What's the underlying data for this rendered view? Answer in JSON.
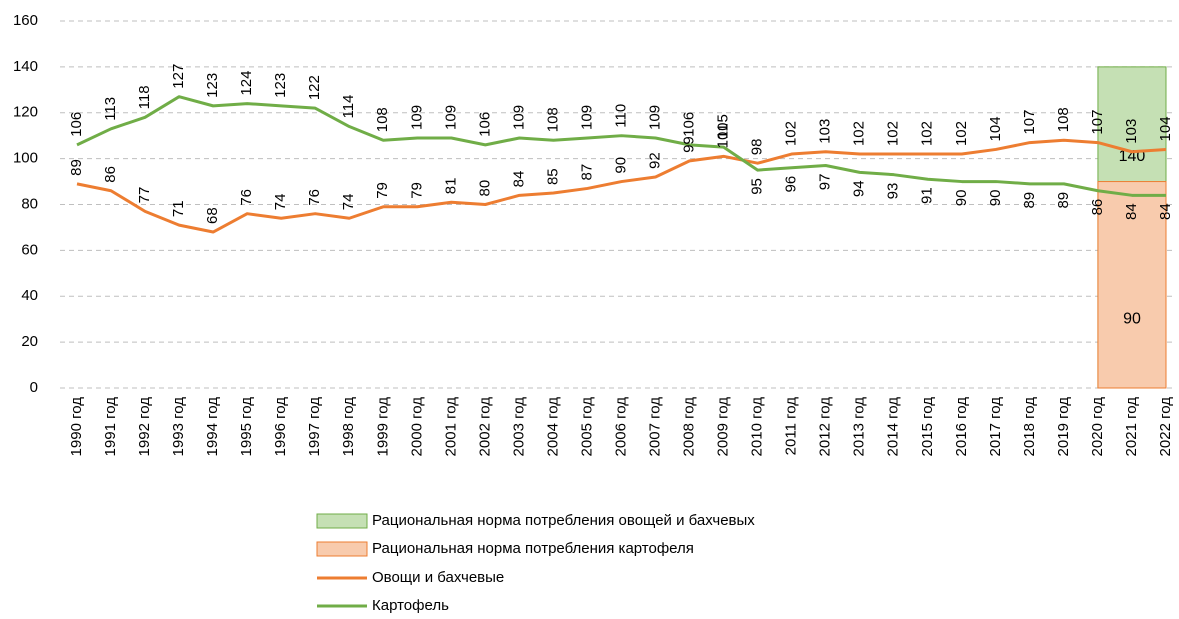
{
  "chart_data": {
    "type": "line",
    "categories": [
      "1990 год",
      "1991 год",
      "1992 год",
      "1993 год",
      "1994 год",
      "1995 год",
      "1996 год",
      "1997 год",
      "1998 год",
      "1999 год",
      "2000 год",
      "2001 год",
      "2002 год",
      "2003 год",
      "2004 год",
      "2005 год",
      "2006 год",
      "2007 год",
      "2008 год",
      "2009 год",
      "2010 год",
      "2011 год",
      "2012 год",
      "2013 год",
      "2014 год",
      "2015 год",
      "2016 год",
      "2017 год",
      "2018 год",
      "2019 год",
      "2020 год",
      "2021 год",
      "2022 год"
    ],
    "bars": [
      {
        "name": "Рациональная норма потребления овощей и бахчевых",
        "color": "#c5e0b4",
        "edge": "#70ad47",
        "values": [
          null,
          null,
          null,
          null,
          null,
          null,
          null,
          null,
          null,
          null,
          null,
          null,
          null,
          null,
          null,
          null,
          null,
          null,
          null,
          null,
          null,
          null,
          null,
          null,
          null,
          null,
          null,
          null,
          null,
          null,
          null,
          140,
          null
        ]
      },
      {
        "name": "Рациональная норма потребления картофеля",
        "color": "#f8cbad",
        "edge": "#ed7d31",
        "values": [
          null,
          null,
          null,
          null,
          null,
          null,
          null,
          null,
          null,
          null,
          null,
          null,
          null,
          null,
          null,
          null,
          null,
          null,
          null,
          null,
          null,
          null,
          null,
          null,
          null,
          null,
          null,
          null,
          null,
          null,
          null,
          90,
          null
        ]
      }
    ],
    "series": [
      {
        "name": "Овощи и бахчевые",
        "color": "#ed7d31",
        "values": [
          89,
          86,
          77,
          71,
          68,
          76,
          74,
          76,
          74,
          79,
          79,
          81,
          80,
          84,
          85,
          87,
          90,
          92,
          99,
          101,
          98,
          102,
          103,
          102,
          102,
          102,
          102,
          104,
          107,
          108,
          107,
          103,
          104
        ]
      },
      {
        "name": "Картофель",
        "color": "#70ad47",
        "values": [
          106,
          113,
          118,
          127,
          123,
          124,
          123,
          122,
          114,
          108,
          109,
          109,
          106,
          109,
          108,
          109,
          110,
          109,
          106,
          105,
          95,
          96,
          97,
          94,
          93,
          91,
          90,
          90,
          89,
          89,
          86,
          84,
          84
        ]
      }
    ],
    "ylim": [
      0,
      160
    ],
    "yticks": [
      0,
      20,
      40,
      60,
      80,
      100,
      120,
      140,
      160
    ],
    "grid": true
  }
}
